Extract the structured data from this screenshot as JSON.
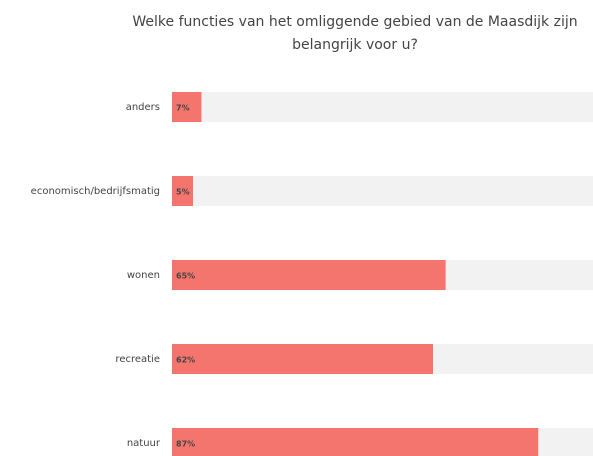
{
  "chart_data": {
    "type": "bar",
    "orientation": "horizontal",
    "title": "Welke functies van het omliggende gebied van de Maasdijk zijn belangrijk voor u?",
    "categories": [
      "anders",
      "economisch/bedrijfsmatig",
      "wonen",
      "recreatie",
      "natuur"
    ],
    "values": [
      7,
      5,
      65,
      62,
      87
    ],
    "value_labels": [
      "7%",
      "5%",
      "65%",
      "62%",
      "87%"
    ],
    "color": "#f4756e",
    "track_color": "#f2f2f2",
    "xlim": [
      0,
      100
    ]
  }
}
